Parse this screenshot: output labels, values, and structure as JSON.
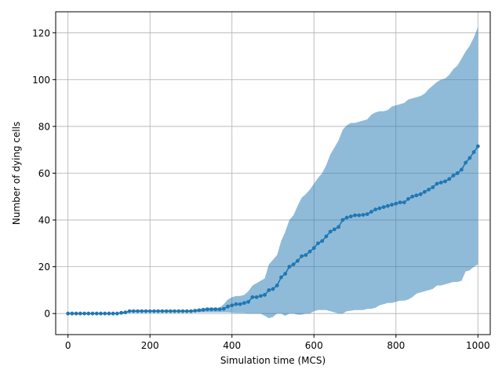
{
  "chart_data": {
    "type": "line",
    "xlabel": "Simulation time (MCS)",
    "ylabel": "Number of dying cells",
    "xlim": [
      -30,
      1030
    ],
    "ylim": [
      -9,
      129
    ],
    "xticks": [
      0,
      200,
      400,
      600,
      800,
      1000
    ],
    "yticks": [
      0,
      20,
      40,
      60,
      80,
      100,
      120
    ],
    "grid": true,
    "colors": {
      "line": "#1f77b4",
      "band": "#1f77b4",
      "band_alpha": 0.5,
      "grid": "#b0b0b0"
    },
    "series": [
      {
        "x": [
          0,
          10,
          20,
          30,
          40,
          50,
          60,
          70,
          80,
          90,
          100,
          110,
          120,
          130,
          140,
          150,
          160,
          170,
          180,
          190,
          200,
          210,
          220,
          230,
          240,
          250,
          260,
          270,
          280,
          290,
          300,
          310,
          320,
          330,
          340,
          350,
          360,
          370,
          380,
          390,
          400,
          410,
          420,
          430,
          440,
          450,
          460,
          470,
          480,
          490,
          500,
          510,
          520,
          530,
          540,
          550,
          560,
          570,
          580,
          590,
          600,
          610,
          620,
          630,
          640,
          650,
          660,
          670,
          680,
          690,
          700,
          710,
          720,
          730,
          740,
          750,
          760,
          770,
          780,
          790,
          800,
          810,
          820,
          830,
          840,
          850,
          860,
          870,
          880,
          890,
          900,
          910,
          920,
          930,
          940,
          950,
          960,
          970,
          980,
          990,
          1000
        ],
        "y": [
          0,
          0,
          0,
          0,
          0,
          0,
          0,
          0,
          0,
          0,
          0,
          0,
          0,
          0.3,
          0.5,
          1,
          1,
          1,
          1,
          1,
          1,
          1,
          1,
          1,
          1,
          1,
          1,
          1,
          1,
          1,
          1,
          1.2,
          1.4,
          1.6,
          1.8,
          1.8,
          1.8,
          1.8,
          2,
          3,
          3.5,
          4,
          4,
          4.5,
          5,
          7,
          7,
          7.5,
          8,
          10,
          10.5,
          12,
          15.5,
          17,
          20,
          21,
          22.5,
          24.5,
          25,
          26.5,
          28,
          30,
          31,
          33,
          35,
          36,
          37,
          40,
          41,
          41.5,
          42,
          42,
          42.2,
          42.5,
          43.5,
          44.5,
          45,
          45.5,
          46,
          46.5,
          47,
          47.5,
          47.5,
          49,
          50,
          50.5,
          51,
          52,
          53,
          54,
          55.5,
          56,
          56.5,
          57.5,
          59,
          60,
          61.5,
          64.5,
          66.5,
          69,
          71.5
        ],
        "lower": [
          0,
          0,
          0,
          0,
          0,
          0,
          0,
          0,
          0,
          0,
          0,
          0,
          0,
          0,
          0,
          0.5,
          0.5,
          0.5,
          0.5,
          0.5,
          0.5,
          0.5,
          0.5,
          0.5,
          0.5,
          0.5,
          0.5,
          0.5,
          0.5,
          0.5,
          0.5,
          0.5,
          0.5,
          0.5,
          0.5,
          0.5,
          0.5,
          0.5,
          0.5,
          0.5,
          0.3,
          0.2,
          0.2,
          0.2,
          0,
          0,
          0,
          0,
          -1,
          -2,
          -1.5,
          0,
          0,
          -1,
          0,
          0,
          -0.5,
          -0.5,
          0,
          0,
          1,
          1.5,
          1.5,
          1.5,
          1,
          0.5,
          0,
          0,
          1,
          1.2,
          1.5,
          1.5,
          1.5,
          2,
          2,
          2.5,
          3.5,
          4,
          4.5,
          4.5,
          5,
          5.5,
          5.5,
          6,
          7,
          8.5,
          9,
          9.5,
          10,
          10.5,
          12,
          12,
          12.5,
          13,
          13.5,
          13.5,
          14,
          18,
          18.5,
          20,
          21
        ],
        "upper": [
          0,
          0,
          0,
          0,
          0,
          0,
          0,
          0,
          0,
          0,
          0,
          0,
          0,
          0.5,
          0.5,
          1.5,
          1.5,
          1.5,
          1.5,
          1.5,
          1.5,
          1.5,
          1.5,
          1.5,
          1.5,
          1.5,
          1.5,
          1.5,
          1.5,
          1.5,
          1.5,
          1.8,
          2,
          2.2,
          2.5,
          2.5,
          2.5,
          2.5,
          4,
          6,
          7,
          7.5,
          7.5,
          8,
          9.5,
          12,
          13,
          14,
          15,
          21,
          23,
          25,
          31,
          35,
          40,
          42,
          46,
          49.5,
          51,
          53,
          55.5,
          58,
          60,
          63.5,
          68,
          71,
          74,
          78.5,
          80.5,
          81.5,
          81.5,
          82,
          82.5,
          83,
          85,
          86,
          86.5,
          86.5,
          87,
          88.5,
          89,
          89.5,
          90,
          91.5,
          92,
          92.5,
          93,
          94,
          96,
          97.5,
          99,
          100,
          100.5,
          102,
          104.5,
          106,
          109,
          112,
          114.5,
          118,
          122.5
        ]
      }
    ]
  }
}
